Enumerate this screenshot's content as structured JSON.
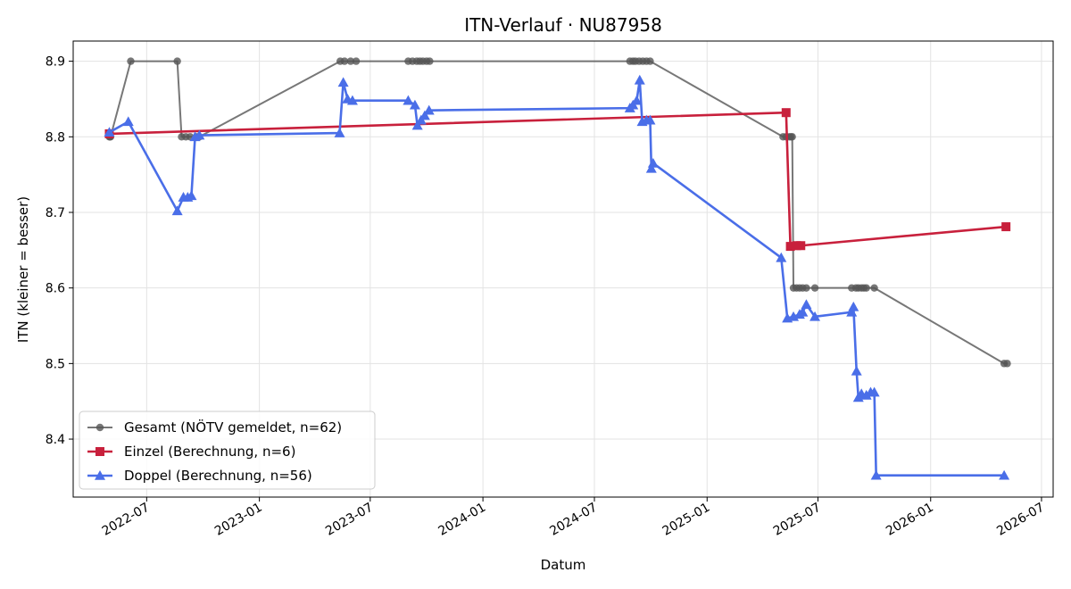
{
  "chart_data": {
    "type": "line",
    "title": "ITN-Verlauf · NU87958",
    "xlabel": "Datum",
    "ylabel": "ITN  (kleiner = besser)",
    "xlim": [
      "2022-03-03",
      "2026-07-20"
    ],
    "ylim": [
      8.3233,
      8.9267
    ],
    "x_ticks": [
      "2022-07",
      "2023-01",
      "2023-07",
      "2024-01",
      "2024-07",
      "2025-01",
      "2025-07",
      "2026-01",
      "2026-07"
    ],
    "y_ticks": [
      8.4,
      8.5,
      8.6,
      8.7,
      8.8,
      8.9
    ],
    "grid": true,
    "legend_position": "lower-left",
    "series": [
      {
        "name": "Gesamt (NÖTV gemeldet, n=62)",
        "color": "#555555",
        "marker": "circle",
        "points": [
          [
            "2022-05-01",
            8.8
          ],
          [
            "2022-05-02",
            8.8
          ],
          [
            "2022-05-03",
            8.8
          ],
          [
            "2022-06-05",
            8.9
          ],
          [
            "2022-08-20",
            8.9
          ],
          [
            "2022-08-27",
            8.8
          ],
          [
            "2022-09-03",
            8.8
          ],
          [
            "2022-09-10",
            8.8
          ],
          [
            "2022-09-20",
            8.8
          ],
          [
            "2022-09-25",
            8.8
          ],
          [
            "2023-05-13",
            8.9
          ],
          [
            "2023-05-20",
            8.9
          ],
          [
            "2023-05-30",
            8.9
          ],
          [
            "2023-06-08",
            8.9
          ],
          [
            "2023-09-01",
            8.9
          ],
          [
            "2023-09-08",
            8.9
          ],
          [
            "2023-09-15",
            8.9
          ],
          [
            "2023-09-20",
            8.9
          ],
          [
            "2023-09-25",
            8.9
          ],
          [
            "2023-10-01",
            8.9
          ],
          [
            "2023-10-06",
            8.9
          ],
          [
            "2024-08-28",
            8.9
          ],
          [
            "2024-09-02",
            8.9
          ],
          [
            "2024-09-06",
            8.9
          ],
          [
            "2024-09-12",
            8.9
          ],
          [
            "2024-09-18",
            8.9
          ],
          [
            "2024-09-24",
            8.9
          ],
          [
            "2024-09-30",
            8.9
          ],
          [
            "2025-05-05",
            8.8
          ],
          [
            "2025-05-10",
            8.8
          ],
          [
            "2025-05-15",
            8.8
          ],
          [
            "2025-05-18",
            8.8
          ],
          [
            "2025-05-20",
            8.8
          ],
          [
            "2025-05-22",
            8.6
          ],
          [
            "2025-05-27",
            8.6
          ],
          [
            "2025-06-01",
            8.6
          ],
          [
            "2025-06-06",
            8.6
          ],
          [
            "2025-06-12",
            8.6
          ],
          [
            "2025-06-26",
            8.6
          ],
          [
            "2025-08-25",
            8.6
          ],
          [
            "2025-09-01",
            8.6
          ],
          [
            "2025-09-05",
            8.6
          ],
          [
            "2025-09-10",
            8.6
          ],
          [
            "2025-09-14",
            8.6
          ],
          [
            "2025-09-18",
            8.6
          ],
          [
            "2025-10-01",
            8.6
          ],
          [
            "2026-05-01",
            8.5
          ],
          [
            "2026-05-06",
            8.5
          ]
        ]
      },
      {
        "name": "Einzel (Berechnung, n=6)",
        "color": "#c8203c",
        "marker": "square",
        "points": [
          [
            "2022-05-01",
            8.804
          ],
          [
            "2025-05-10",
            8.832
          ],
          [
            "2025-05-17",
            8.655
          ],
          [
            "2025-05-27",
            8.656
          ],
          [
            "2025-06-03",
            8.656
          ],
          [
            "2026-05-04",
            8.681
          ]
        ]
      },
      {
        "name": "Doppel (Berechnung, n=56)",
        "color": "#4a6ee8",
        "marker": "triangle",
        "points": [
          [
            "2022-05-01",
            8.806
          ],
          [
            "2022-06-01",
            8.82
          ],
          [
            "2022-08-20",
            8.702
          ],
          [
            "2022-08-30",
            8.72
          ],
          [
            "2022-09-06",
            8.72
          ],
          [
            "2022-09-12",
            8.722
          ],
          [
            "2022-09-18",
            8.8
          ],
          [
            "2022-09-25",
            8.802
          ],
          [
            "2023-05-12",
            8.805
          ],
          [
            "2023-05-18",
            8.872
          ],
          [
            "2023-05-25",
            8.85
          ],
          [
            "2023-06-02",
            8.848
          ],
          [
            "2023-09-01",
            8.848
          ],
          [
            "2023-09-12",
            8.842
          ],
          [
            "2023-09-16",
            8.815
          ],
          [
            "2023-09-22",
            8.822
          ],
          [
            "2023-09-28",
            8.828
          ],
          [
            "2023-10-05",
            8.835
          ],
          [
            "2024-08-28",
            8.838
          ],
          [
            "2024-09-02",
            8.842
          ],
          [
            "2024-09-08",
            8.848
          ],
          [
            "2024-09-13",
            8.875
          ],
          [
            "2024-09-17",
            8.82
          ],
          [
            "2024-09-24",
            8.822
          ],
          [
            "2024-09-30",
            8.822
          ],
          [
            "2024-10-02",
            8.758
          ],
          [
            "2024-10-05",
            8.765
          ],
          [
            "2025-05-02",
            8.64
          ],
          [
            "2025-05-12",
            8.56
          ],
          [
            "2025-05-22",
            8.562
          ],
          [
            "2025-06-01",
            8.565
          ],
          [
            "2025-06-06",
            8.568
          ],
          [
            "2025-06-12",
            8.578
          ],
          [
            "2025-06-26",
            8.562
          ],
          [
            "2025-08-25",
            8.568
          ],
          [
            "2025-08-28",
            8.575
          ],
          [
            "2025-09-02",
            8.49
          ],
          [
            "2025-09-05",
            8.455
          ],
          [
            "2025-09-10",
            8.46
          ],
          [
            "2025-09-18",
            8.458
          ],
          [
            "2025-09-25",
            8.462
          ],
          [
            "2025-10-01",
            8.462
          ],
          [
            "2025-10-04",
            8.352
          ],
          [
            "2026-05-01",
            8.352
          ]
        ]
      }
    ]
  }
}
